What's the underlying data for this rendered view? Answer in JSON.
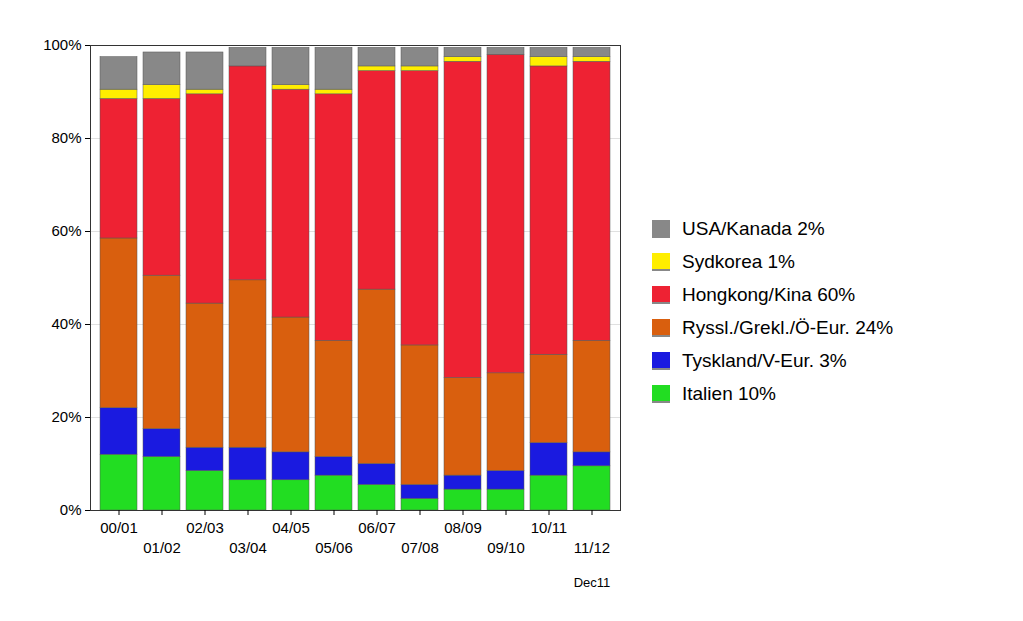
{
  "chart_data": {
    "type": "bar",
    "stacked": true,
    "legend": "right",
    "categories": [
      "00/01",
      "01/02",
      "02/03",
      "03/04",
      "04/05",
      "05/06",
      "06/07",
      "07/08",
      "08/09",
      "09/10",
      "10/11",
      "11/12"
    ],
    "annotations": [
      "Dec11"
    ],
    "ylim": [
      0,
      100
    ],
    "yticks": [
      {
        "value": 0,
        "label": "0%"
      },
      {
        "value": 20,
        "label": "20%"
      },
      {
        "value": 40,
        "label": "40%"
      },
      {
        "value": 60,
        "label": "60%"
      },
      {
        "value": 80,
        "label": "80%"
      },
      {
        "value": 100,
        "label": "100%"
      }
    ],
    "series": [
      {
        "name": "Italien 10%",
        "color": "#22dd22",
        "values": [
          12,
          11.5,
          8.5,
          6.5,
          6.5,
          7.5,
          5.5,
          2.5,
          4.5,
          4.5,
          7.5,
          9.5
        ]
      },
      {
        "name": "Tyskland/V-Eur. 3%",
        "color": "#1a1ae0",
        "values": [
          10,
          6,
          5,
          7,
          6,
          4,
          4.5,
          3,
          3,
          4,
          7,
          3
        ]
      },
      {
        "name": "Ryssl./Grekl./Ö-Eur. 24%",
        "color": "#d95f0e",
        "values": [
          36.5,
          33,
          31,
          36,
          29,
          25,
          37.5,
          30,
          21,
          21,
          19,
          24
        ]
      },
      {
        "name": "Hongkong/Kina 60%",
        "color": "#ee2233",
        "values": [
          30,
          38,
          45,
          46,
          49,
          53,
          47,
          59,
          68,
          68.5,
          62,
          60
        ]
      },
      {
        "name": "Sydkorea 1%",
        "color": "#ffee00",
        "values": [
          2,
          3,
          1,
          0,
          1,
          1,
          1,
          1,
          1,
          0,
          2,
          1
        ]
      },
      {
        "name": "USA/Kanada 2%",
        "color": "#888888",
        "values": [
          7,
          7,
          8,
          4,
          8,
          9,
          4,
          4,
          2,
          1.5,
          2,
          2
        ]
      }
    ]
  }
}
